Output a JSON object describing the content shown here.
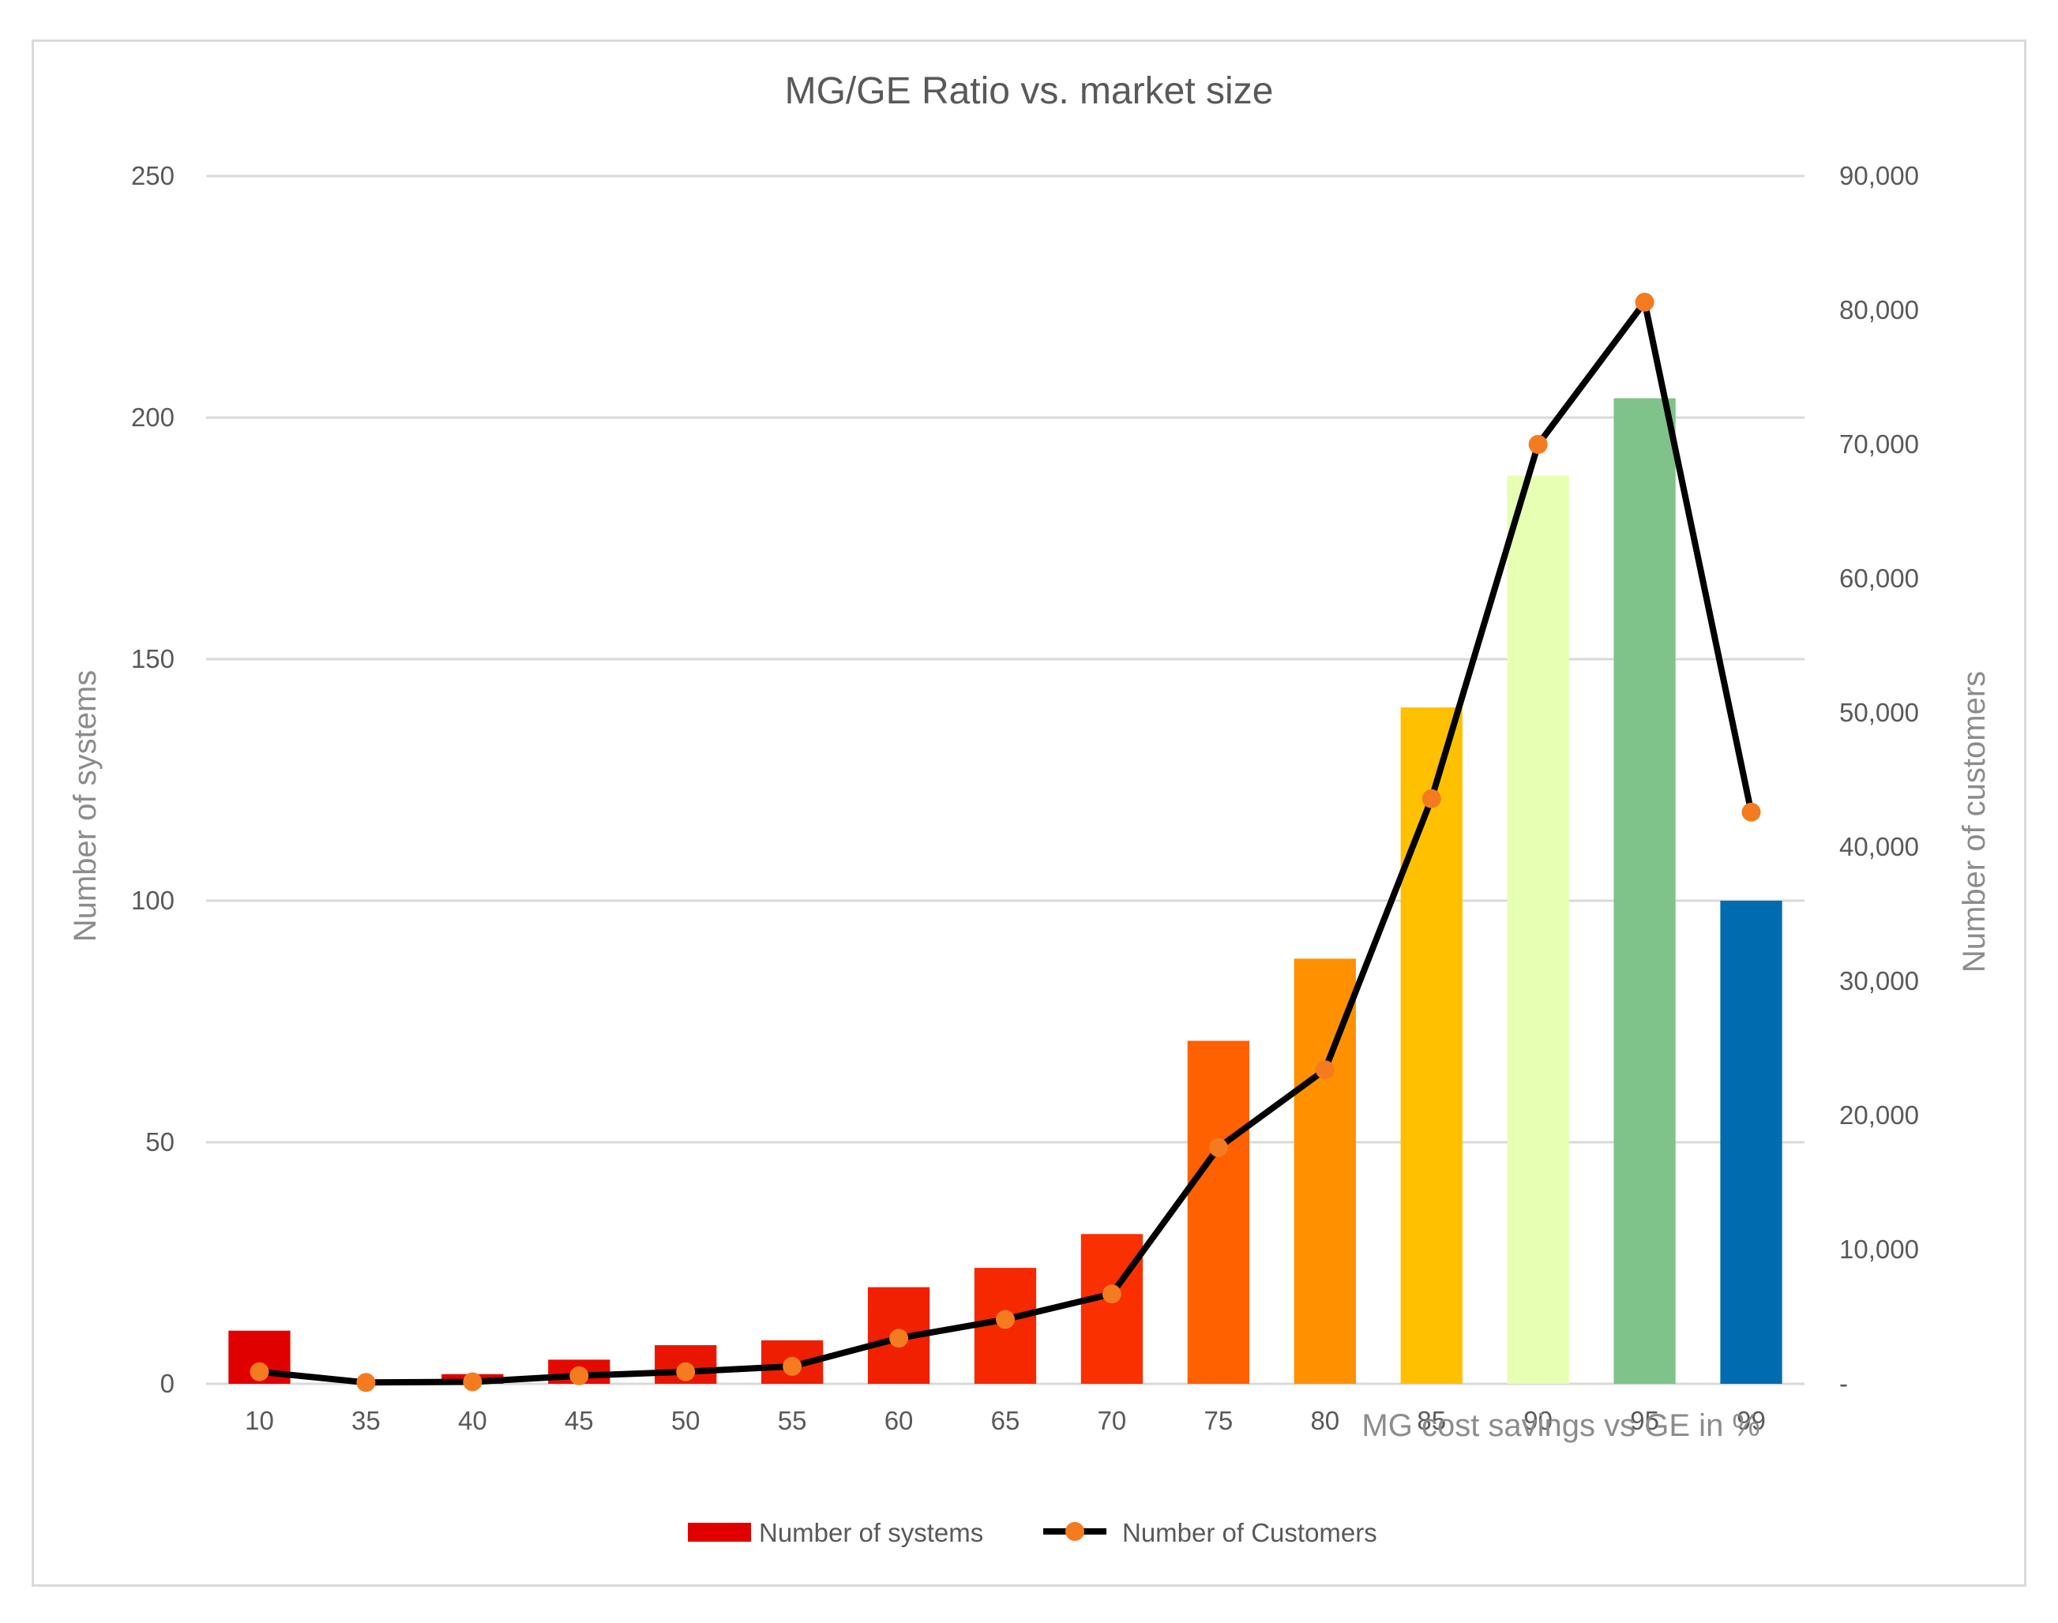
{
  "chart_data": {
    "type": "bar+line",
    "title": "MG/GE Ratio vs. market size",
    "xlabel": "MG cost savings vs GE in %",
    "ylabel_left": "Number of systems",
    "ylabel_right": "Number of customers",
    "categories": [
      "10",
      "35",
      "40",
      "45",
      "50",
      "55",
      "60",
      "65",
      "70",
      "75",
      "80",
      "85",
      "90",
      "95",
      "99"
    ],
    "series": [
      {
        "name": "Number of systems",
        "type": "bar",
        "axis": "left",
        "values": [
          11,
          0,
          2,
          5,
          8,
          9,
          20,
          24,
          31,
          71,
          88,
          140,
          188,
          204,
          100
        ],
        "colors": [
          "#e00000",
          "#e00000",
          "#e00000",
          "#e50a00",
          "#ea1500",
          "#ee1f00",
          "#f02000",
          "#f52800",
          "#fa3000",
          "#ff6000",
          "#ff9000",
          "#ffc000",
          "#e6ffb3",
          "#7fc28a",
          "#006cb0"
        ]
      },
      {
        "name": "Number of Customers",
        "type": "line",
        "axis": "right",
        "values": [
          900,
          100,
          150,
          600,
          900,
          1300,
          3400,
          4800,
          6700,
          17600,
          23400,
          43600,
          70000,
          80600,
          42600
        ],
        "line_color": "#000000",
        "marker_color": "#f47b20"
      }
    ],
    "y_left": {
      "ylim": [
        0,
        250
      ],
      "ticks": [
        "0",
        "50",
        "100",
        "150",
        "200",
        "250"
      ]
    },
    "y_right": {
      "ylim": [
        0,
        90000
      ],
      "ticks": [
        "-",
        "10,000",
        "20,000",
        "30,000",
        "40,000",
        "50,000",
        "60,000",
        "70,000",
        "80,000",
        "90,000"
      ]
    },
    "grid": true,
    "legend_position": "bottom",
    "legend": [
      {
        "label": "Number of systems",
        "swatch_color": "#e00000"
      },
      {
        "label": "Number of Customers",
        "line_color": "#000000",
        "marker_color": "#f47b20"
      }
    ]
  }
}
